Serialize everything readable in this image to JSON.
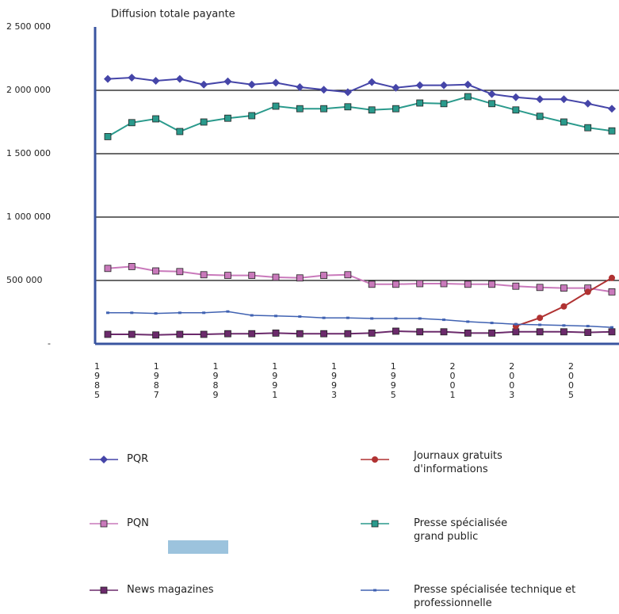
{
  "chart_data": {
    "type": "line",
    "title": "Diffusion totale payante",
    "x_labels": [
      "1985",
      "1987",
      "1989",
      "1991",
      "1993",
      "1995",
      "2001",
      "2003",
      "2005"
    ],
    "ylim": [
      0,
      2500000
    ],
    "yticks": [
      {
        "value": 0,
        "label": "-"
      },
      {
        "value": 500000,
        "label": "500 000"
      },
      {
        "value": 1000000,
        "label": "1 000 000"
      },
      {
        "value": 1500000,
        "label": "1 500 000"
      },
      {
        "value": 2000000,
        "label": "2 000 000"
      },
      {
        "value": 2500000,
        "label": "2 500 000"
      }
    ],
    "grid": true,
    "series": [
      {
        "name": "PQR",
        "color": "#4545a8",
        "marker": "diamond",
        "values": [
          2090000,
          2100000,
          2075000,
          2090000,
          2045000,
          2070000,
          2045000,
          2060000,
          2025000,
          2005000,
          1985000,
          2065000,
          2020000,
          2040000,
          2040000,
          2045000,
          1970000,
          1945000,
          1930000,
          1930000,
          1895000,
          1855000
        ]
      },
      {
        "name": "PQN",
        "color": "#c979bb",
        "marker": "square",
        "values": [
          595000,
          610000,
          575000,
          570000,
          545000,
          540000,
          540000,
          525000,
          520000,
          540000,
          545000,
          470000,
          470000,
          475000,
          475000,
          470000,
          470000,
          455000,
          445000,
          440000,
          440000,
          410000
        ]
      },
      {
        "name": "News magazines",
        "color": "#6b2a6b",
        "marker": "square",
        "values": [
          75000,
          75000,
          70000,
          75000,
          75000,
          80000,
          80000,
          85000,
          80000,
          80000,
          80000,
          85000,
          100000,
          95000,
          95000,
          85000,
          85000,
          95000,
          95000,
          95000,
          90000,
          95000
        ]
      },
      {
        "name": "Journaux gratuits d'informations",
        "color": "#b03232",
        "marker": "circle",
        "values": [
          null,
          null,
          null,
          null,
          null,
          null,
          null,
          null,
          null,
          null,
          null,
          null,
          null,
          null,
          null,
          null,
          null,
          140000,
          205000,
          295000,
          410000,
          520000
        ]
      },
      {
        "name": "Presse spécialisée grand public",
        "color": "#2a9a8c",
        "marker": "square",
        "values": [
          1635000,
          1745000,
          1775000,
          1675000,
          1750000,
          1780000,
          1800000,
          1875000,
          1855000,
          1855000,
          1870000,
          1845000,
          1855000,
          1900000,
          1895000,
          1950000,
          1895000,
          1845000,
          1795000,
          1750000,
          1705000,
          1680000
        ]
      },
      {
        "name": "Presse spécialisée technique et professionnelle",
        "color": "#4062b2",
        "marker": "dash",
        "values": [
          245000,
          245000,
          240000,
          245000,
          245000,
          255000,
          225000,
          220000,
          215000,
          205000,
          205000,
          200000,
          200000,
          200000,
          190000,
          175000,
          165000,
          155000,
          150000,
          145000,
          140000,
          130000
        ]
      }
    ]
  }
}
